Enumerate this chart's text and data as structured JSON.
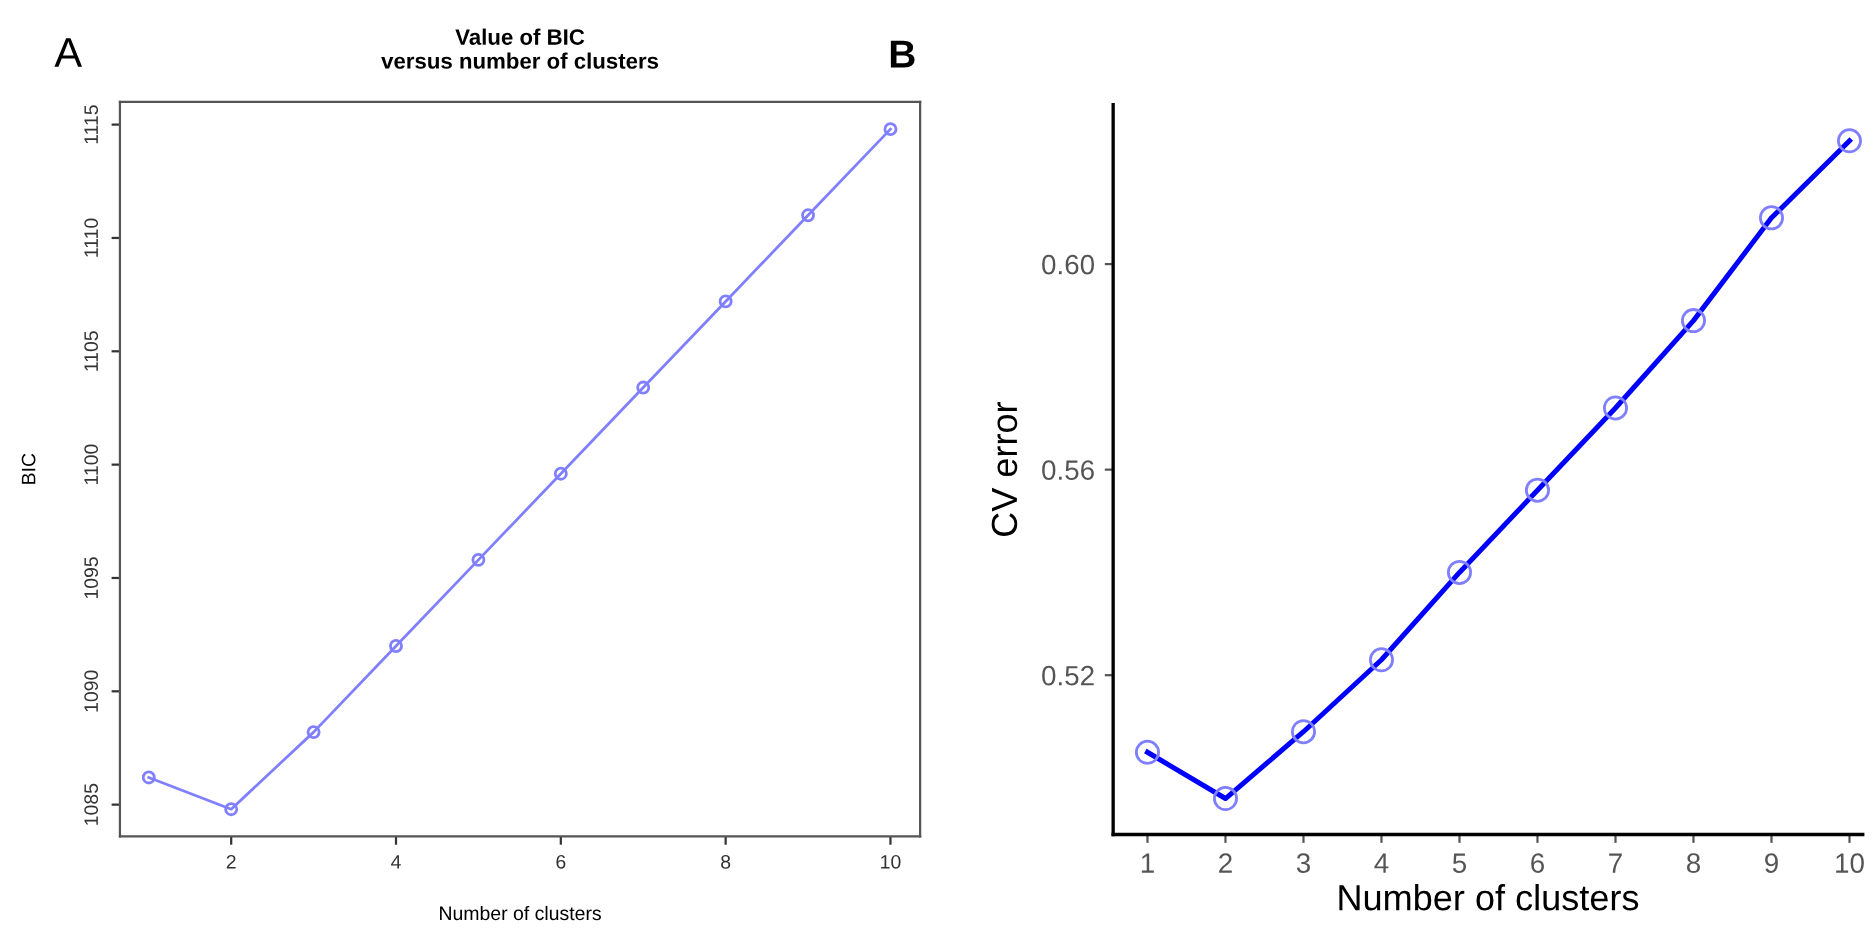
{
  "chart_data": [
    {
      "type": "line",
      "title": "Value of BIC\nversus number of clusters",
      "xlabel": "Number of clusters",
      "ylabel": "BIC",
      "annotations": [
        "A"
      ],
      "x": [
        1,
        2,
        3,
        4,
        5,
        6,
        7,
        8,
        9,
        10
      ],
      "series": [
        {
          "color": "#7f7fff",
          "values": [
            1086.2,
            1084.8,
            1088.2,
            1092.0,
            1095.8,
            1099.6,
            1103.4,
            1107.2,
            1111.0,
            1114.8
          ]
        }
      ],
      "xlim": [
        0.65,
        10.36
      ],
      "ylim": [
        1083.6,
        1116.0
      ],
      "xticks": [
        2,
        4,
        6,
        8,
        10
      ],
      "yticks": [
        1085,
        1090,
        1095,
        1100,
        1105,
        1110,
        1115
      ],
      "grid": false,
      "marker": "circle",
      "line_style": "solid"
    },
    {
      "type": "line",
      "xlabel": "Number of clusters",
      "ylabel": "CV error",
      "annotations": [
        "B"
      ],
      "x": [
        1,
        2,
        3,
        4,
        5,
        6,
        7,
        8,
        9,
        10
      ],
      "series": [
        {
          "color": "#0000ff",
          "values": [
            0.505,
            0.496,
            0.509,
            0.523,
            0.54,
            0.556,
            0.572,
            0.589,
            0.609,
            0.624
          ]
        }
      ],
      "xlim": [
        0.56,
        10.17
      ],
      "ylim": [
        0.489,
        0.631
      ],
      "xticks": [
        1,
        2,
        3,
        4,
        5,
        6,
        7,
        8,
        9,
        10
      ],
      "yticks": [
        0.52,
        0.56,
        {
          "value": 0.6,
          "label": "0.60"
        }
      ],
      "grid": false,
      "marker": "circle",
      "line_style": "solid"
    }
  ]
}
